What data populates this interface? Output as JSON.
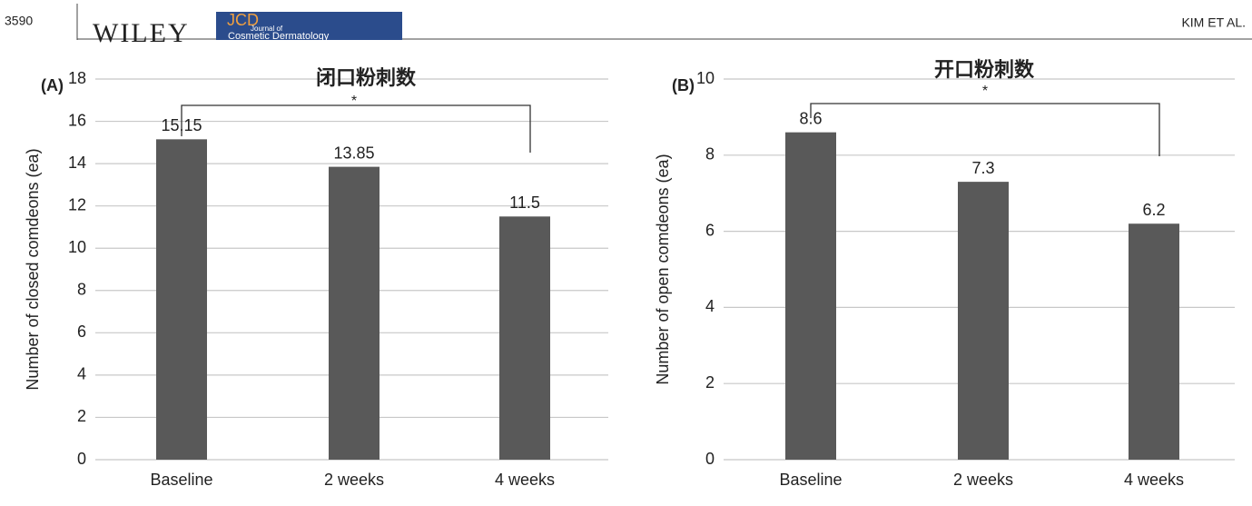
{
  "header": {
    "page_number": "3590",
    "publisher": "WILEY",
    "journal_abbr": "JCD",
    "journal_line1": "Journal of",
    "journal_line2": "Cosmetic Dermatology",
    "running_head": "KIM ET AL."
  },
  "chart_data": [
    {
      "type": "bar",
      "panel_label": "(A)",
      "title": "闭口粉刺数",
      "y_label": "Number of closed comdeons (ea)",
      "categories": [
        "Baseline",
        "2 weeks",
        "4 weeks"
      ],
      "values": [
        15.15,
        13.85,
        11.5
      ],
      "color": "#595959",
      "ylim": [
        0,
        18
      ],
      "yticks": [
        0,
        2,
        4,
        6,
        8,
        10,
        12,
        14,
        16,
        18
      ],
      "grid": true,
      "annotation": "*"
    },
    {
      "type": "bar",
      "panel_label": "(B)",
      "title": "开口粉刺数",
      "y_label": "Number of open comdeons (ea)",
      "categories": [
        "Baseline",
        "2 weeks",
        "4 weeks"
      ],
      "values": [
        8.6,
        7.3,
        6.2
      ],
      "color": "#595959",
      "ylim": [
        0,
        10
      ],
      "yticks": [
        0,
        2,
        4,
        6,
        8,
        10
      ],
      "grid": true,
      "annotation": "*"
    }
  ]
}
